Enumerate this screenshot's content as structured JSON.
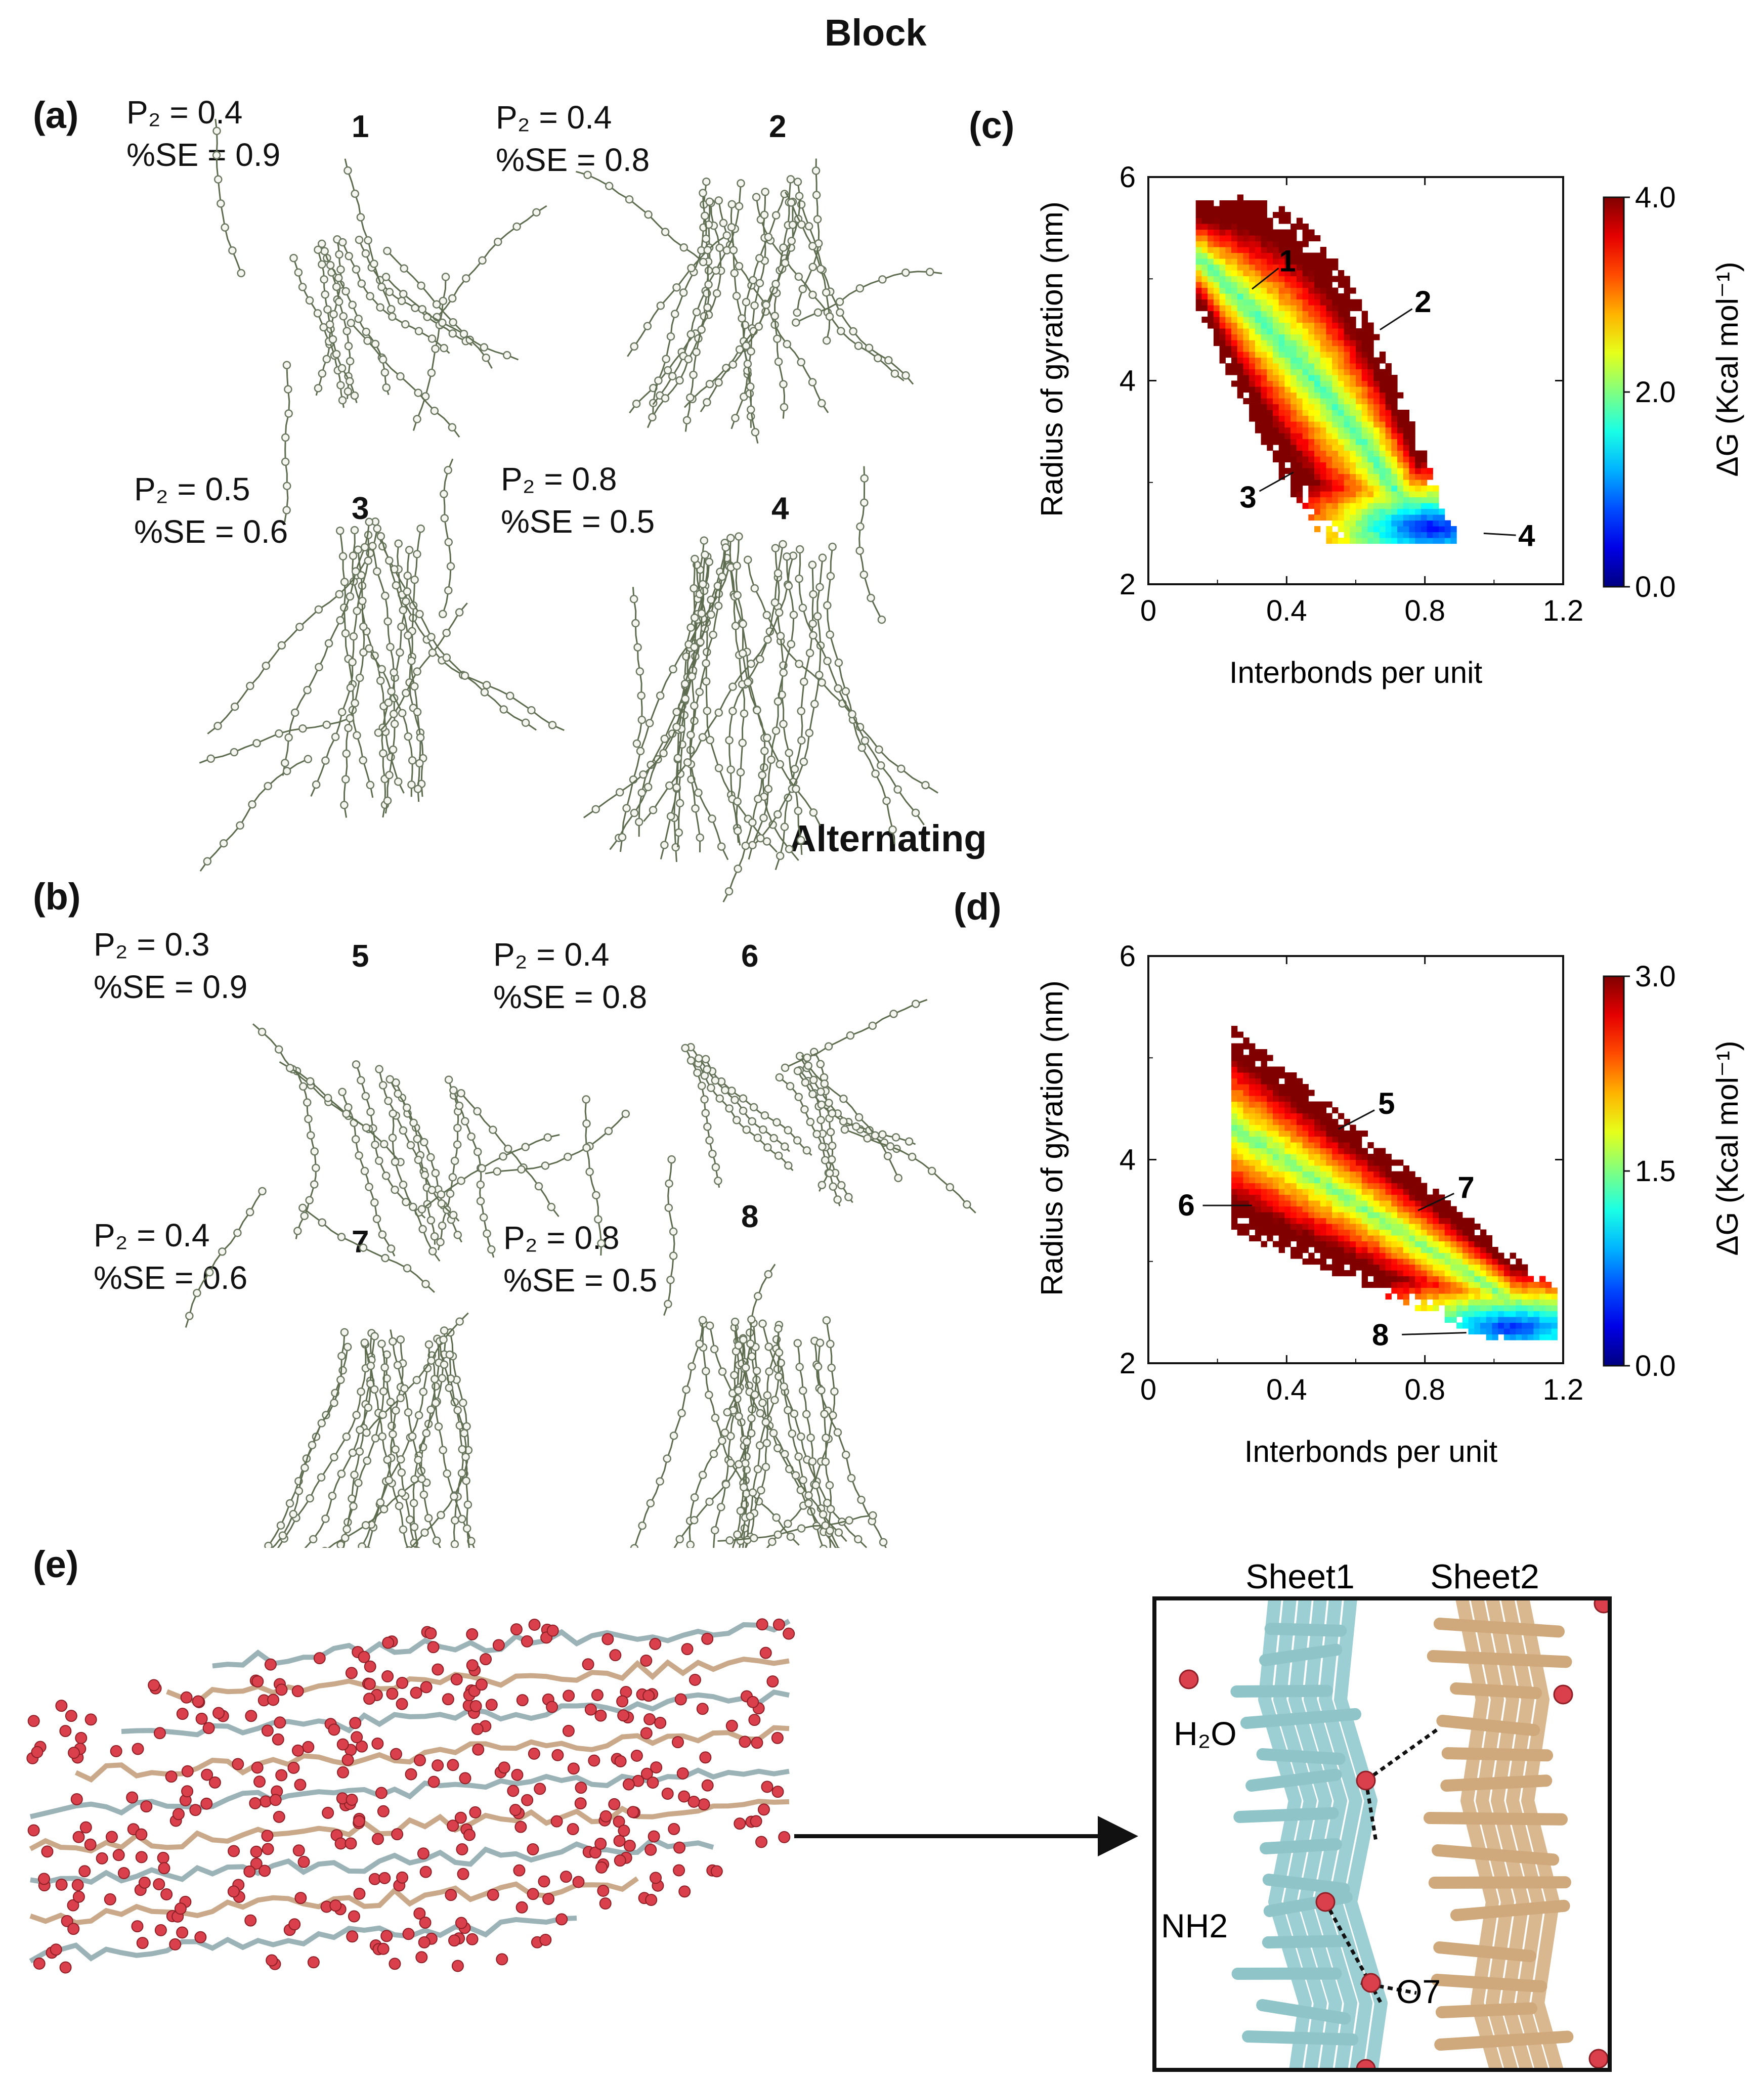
{
  "headings": {
    "block": "Block",
    "alternating": "Alternating"
  },
  "panel_labels": {
    "a": "(a)",
    "b": "(b)",
    "c": "(c)",
    "d": "(d)",
    "e": "(e)"
  },
  "snapshots": [
    {
      "id": "1",
      "p2": "P₂ = 0.4",
      "se": "%SE = 0.9"
    },
    {
      "id": "2",
      "p2": "P₂ = 0.4",
      "se": "%SE = 0.8"
    },
    {
      "id": "3",
      "p2": "P₂ = 0.5",
      "se": "%SE = 0.6"
    },
    {
      "id": "4",
      "p2": "P₂ = 0.8",
      "se": "%SE = 0.5"
    },
    {
      "id": "5",
      "p2": "P₂ = 0.3",
      "se": "%SE = 0.9"
    },
    {
      "id": "6",
      "p2": "P₂ = 0.4",
      "se": "%SE = 0.8"
    },
    {
      "id": "7",
      "p2": "P₂ = 0.4",
      "se": "%SE = 0.6"
    },
    {
      "id": "8",
      "p2": "P₂ = 0.8",
      "se": "%SE = 0.5"
    }
  ],
  "chart_data": [
    {
      "type": "heatmap",
      "panel": "c",
      "xlabel": "Interbonds per unit",
      "ylabel": "Radius of gyration (nm)",
      "xlim": [
        0,
        1.2
      ],
      "ylim": [
        2,
        6
      ],
      "xticks": [
        "0",
        "0.4",
        "0.8",
        "1.2"
      ],
      "yticks": [
        "2",
        "4",
        "6"
      ],
      "colorbar": {
        "label": "ΔG (Kcal mol⁻¹)",
        "min": 0.0,
        "max": 4.0,
        "ticks": [
          "0.0",
          "2.0",
          "4.0"
        ]
      },
      "annotations": [
        {
          "label": "1",
          "x": 0.3,
          "y": 4.9
        },
        {
          "label": "2",
          "x": 0.67,
          "y": 4.5
        },
        {
          "label": "3",
          "x": 0.42,
          "y": 3.1
        },
        {
          "label": "4",
          "x": 0.97,
          "y": 2.5
        }
      ],
      "minimum": {
        "x": 0.82,
        "y": 2.55
      }
    },
    {
      "type": "heatmap",
      "panel": "d",
      "xlabel": "Interbonds per unit",
      "ylabel": "Radius of gyration (nm)",
      "xlim": [
        0,
        1.2
      ],
      "ylim": [
        2,
        6
      ],
      "xticks": [
        "0",
        "0.4",
        "0.8",
        "1.2"
      ],
      "yticks": [
        "2",
        "4",
        "6"
      ],
      "colorbar": {
        "label": "ΔG (Kcal mol⁻¹)",
        "min": 0.0,
        "max": 3.0,
        "ticks": [
          "0.0",
          "1.5",
          "3.0"
        ]
      },
      "annotations": [
        {
          "label": "5",
          "x": 0.55,
          "y": 4.3
        },
        {
          "label": "6",
          "x": 0.3,
          "y": 3.55
        },
        {
          "label": "7",
          "x": 0.78,
          "y": 3.5
        },
        {
          "label": "8",
          "x": 0.92,
          "y": 2.3
        }
      ],
      "minimum": {
        "x": 1.05,
        "y": 2.35
      }
    }
  ],
  "panel_e": {
    "sheet1": "Sheet1",
    "sheet2": "Sheet2",
    "water": "H₂O",
    "nh2": "NH2",
    "o7": "O7"
  }
}
